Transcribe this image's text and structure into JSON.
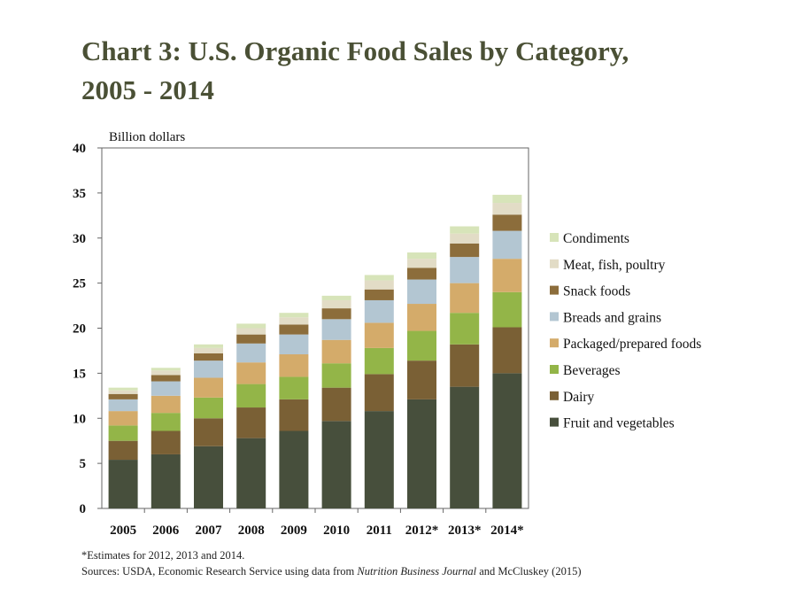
{
  "title_line1": "Chart 3: U.S. Organic Food Sales by Category,",
  "title_line2": "2005 - 2014",
  "footnote": "*Estimates for 2012, 2013 and 2014.",
  "sources_prefix": "Sources: USDA, Economic Research Service using data from ",
  "sources_italic": "Nutrition Business Journal",
  "sources_suffix": " and McCluskey (2015)",
  "chart_data": {
    "type": "bar",
    "stacked": true,
    "ylabel": "Billion dollars",
    "ylim": [
      0,
      40
    ],
    "yticks": [
      0,
      5,
      10,
      15,
      20,
      25,
      30,
      35,
      40
    ],
    "categories": [
      "2005",
      "2006",
      "2007",
      "2008",
      "2009",
      "2010",
      "2011",
      "2012*",
      "2013*",
      "2014*"
    ],
    "legend_position": "right",
    "series": [
      {
        "name": "Fruit and vegetables",
        "color": "#474f3c",
        "values": [
          5.4,
          6.0,
          6.9,
          7.8,
          8.6,
          9.7,
          10.8,
          12.1,
          13.5,
          15.0
        ]
      },
      {
        "name": "Dairy",
        "color": "#7a6035",
        "values": [
          2.1,
          2.6,
          3.1,
          3.4,
          3.5,
          3.7,
          4.1,
          4.3,
          4.7,
          5.1
        ]
      },
      {
        "name": "Beverages",
        "color": "#93b548",
        "values": [
          1.7,
          2.0,
          2.3,
          2.6,
          2.5,
          2.7,
          2.9,
          3.3,
          3.5,
          3.9
        ]
      },
      {
        "name": "Packaged/prepared foods",
        "color": "#d4ab6a",
        "values": [
          1.6,
          1.9,
          2.2,
          2.4,
          2.5,
          2.6,
          2.8,
          3.0,
          3.3,
          3.7
        ]
      },
      {
        "name": "Breads and grains",
        "color": "#b3c6d2",
        "values": [
          1.3,
          1.6,
          1.9,
          2.1,
          2.2,
          2.3,
          2.5,
          2.7,
          2.9,
          3.1
        ]
      },
      {
        "name": "Snack foods",
        "color": "#8c6d3b",
        "values": [
          0.6,
          0.7,
          0.8,
          1.0,
          1.1,
          1.2,
          1.2,
          1.3,
          1.5,
          1.8
        ]
      },
      {
        "name": "Meat, fish, poultry",
        "color": "#e2dcc6",
        "values": [
          0.4,
          0.5,
          0.6,
          0.7,
          0.8,
          0.9,
          1.0,
          1.0,
          1.1,
          1.3
        ]
      },
      {
        "name": "Condiments",
        "color": "#d7e4b9",
        "values": [
          0.3,
          0.3,
          0.4,
          0.5,
          0.5,
          0.5,
          0.6,
          0.7,
          0.8,
          0.9
        ]
      }
    ]
  }
}
